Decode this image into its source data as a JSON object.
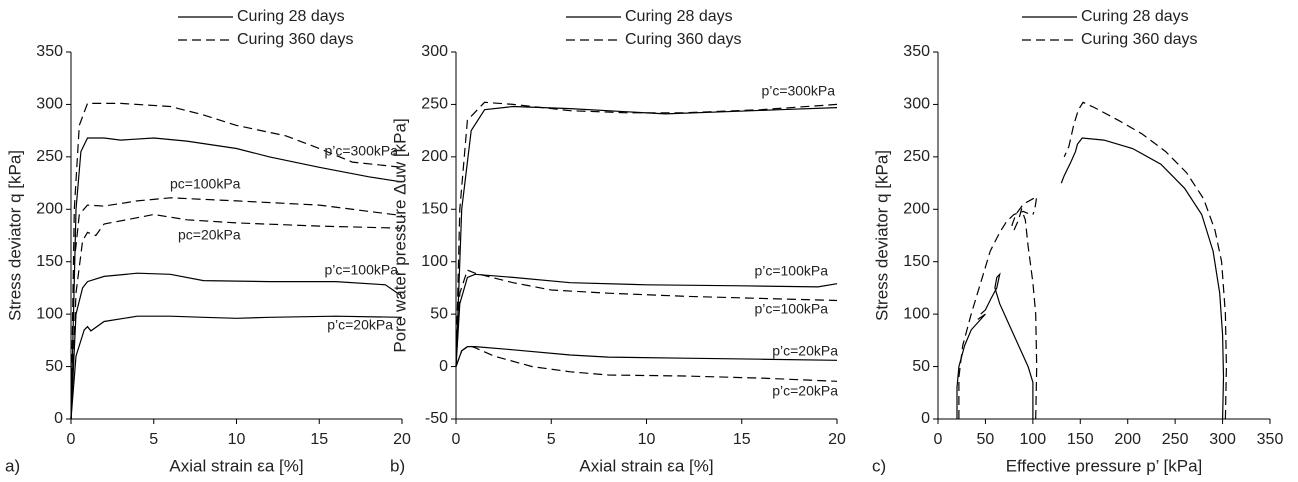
{
  "chart_data": [
    {
      "type": "line",
      "panel_label": "a)",
      "x_label": "Axial strain εa [%]",
      "y_label": "Stress deviator q [kPa]",
      "xlim": [
        0,
        20
      ],
      "xticks": [
        0,
        5,
        10,
        15,
        20
      ],
      "ylim": [
        0,
        350
      ],
      "yticks": [
        0,
        50,
        100,
        150,
        200,
        250,
        300,
        350
      ],
      "legend": [
        {
          "label": "Curing 28 days",
          "style": "solid"
        },
        {
          "label": "Curing 360 days",
          "style": "dashed"
        }
      ],
      "annotations": [
        "p’c=300kPa",
        "pc=100kPa",
        "pc=20kPa",
        "p’c=100kPa",
        "p’c=20kPa"
      ],
      "series": [
        {
          "style": "solid",
          "color": "#000000",
          "x": [
            0,
            0.3,
            0.6,
            1,
            2,
            3,
            5,
            7,
            10,
            12,
            15,
            18,
            20
          ],
          "values": [
            0,
            200,
            255,
            268,
            268,
            266,
            268,
            265,
            258,
            250,
            240,
            231,
            226
          ]
        },
        {
          "style": "dashed",
          "color": "#000000",
          "x": [
            0,
            0.2,
            0.5,
            1,
            3,
            6,
            8,
            10,
            13,
            15,
            17,
            20
          ],
          "values": [
            0,
            200,
            280,
            301,
            301,
            298,
            290,
            280,
            270,
            258,
            245,
            240
          ]
        },
        {
          "style": "dashed",
          "color": "#000000",
          "x": [
            0,
            0.2,
            0.5,
            1,
            2,
            4,
            6,
            10,
            15,
            20
          ],
          "values": [
            0,
            150,
            195,
            204,
            203,
            208,
            211,
            208,
            204,
            194
          ]
        },
        {
          "style": "dashed",
          "color": "#000000",
          "x": [
            0,
            0.3,
            0.7,
            1,
            1.5,
            2,
            4,
            5,
            7,
            10,
            15,
            20
          ],
          "values": [
            0,
            120,
            170,
            178,
            175,
            186,
            192,
            195,
            190,
            187,
            184,
            182
          ]
        },
        {
          "style": "solid",
          "color": "#000000",
          "x": [
            0,
            0.3,
            0.7,
            1,
            2,
            4,
            6,
            8,
            12,
            16,
            19,
            20
          ],
          "values": [
            0,
            100,
            125,
            131,
            136,
            139,
            138,
            132,
            131,
            131,
            128,
            117
          ]
        },
        {
          "style": "solid",
          "color": "#000000",
          "x": [
            0,
            0.3,
            0.8,
            1,
            1.2,
            2,
            4,
            6,
            8,
            10,
            12,
            16,
            20
          ],
          "values": [
            0,
            60,
            85,
            88,
            84,
            93,
            98,
            98,
            97,
            96,
            97,
            98,
            97
          ]
        }
      ]
    },
    {
      "type": "line",
      "panel_label": "b)",
      "x_label": "Axial strain εa [%]",
      "y_label": "Pore water pressure Δuw [kPa]",
      "xlim": [
        0,
        20
      ],
      "xticks": [
        0,
        5,
        10,
        15,
        20
      ],
      "ylim": [
        -50,
        300
      ],
      "yticks": [
        -50,
        0,
        50,
        100,
        150,
        200,
        250,
        300
      ],
      "legend": [
        {
          "label": "Curing 28 days",
          "style": "solid"
        },
        {
          "label": "Curing 360 days",
          "style": "dashed"
        }
      ],
      "annotations": [
        "p’c=300kPa",
        "p’c=100kPa",
        "p’c=100kPa",
        "p’c=20kPa",
        "p’c=20kPa"
      ],
      "series": [
        {
          "style": "solid",
          "color": "#000000",
          "x": [
            0,
            0.3,
            0.8,
            1.5,
            3,
            6,
            9,
            11,
            14,
            17,
            20
          ],
          "values": [
            0,
            150,
            225,
            245,
            248,
            246,
            243,
            241,
            243,
            245,
            247
          ]
        },
        {
          "style": "dashed",
          "color": "#000000",
          "x": [
            0,
            0.2,
            0.6,
            1.5,
            3,
            6,
            9,
            12,
            16,
            20
          ],
          "values": [
            0,
            150,
            235,
            252,
            250,
            244,
            242,
            242,
            245,
            250
          ]
        },
        {
          "style": "solid",
          "color": "#000000",
          "x": [
            0,
            0.2,
            0.6,
            1,
            3,
            6,
            10,
            15,
            19,
            20
          ],
          "values": [
            0,
            60,
            85,
            88,
            85,
            80,
            78,
            77,
            76,
            79
          ]
        },
        {
          "style": "dashed",
          "color": "#000000",
          "x": [
            0,
            0.2,
            0.6,
            1,
            3,
            5,
            8,
            12,
            16,
            20
          ],
          "values": [
            0,
            70,
            92,
            89,
            80,
            73,
            70,
            67,
            65,
            63
          ]
        },
        {
          "style": "solid",
          "color": "#000000",
          "x": [
            0,
            0.3,
            0.6,
            1,
            3,
            6,
            8,
            12,
            16,
            20
          ],
          "values": [
            0,
            15,
            19,
            19,
            16,
            11,
            9,
            8,
            7,
            6
          ]
        },
        {
          "style": "dashed",
          "color": "#000000",
          "x": [
            0,
            0.3,
            0.7,
            1,
            2,
            4,
            6,
            8,
            12,
            16,
            20
          ],
          "values": [
            0,
            15,
            20,
            18,
            10,
            0,
            -5,
            -8,
            -9,
            -11,
            -14
          ]
        }
      ]
    },
    {
      "type": "line",
      "panel_label": "c)",
      "x_label": "Effective pressure p’ [kPa]",
      "y_label": "Stress deviator q [kPa]",
      "xlim": [
        0,
        350
      ],
      "xticks": [
        0,
        50,
        100,
        150,
        200,
        250,
        300,
        350
      ],
      "ylim": [
        0,
        350
      ],
      "yticks": [
        0,
        50,
        100,
        150,
        200,
        250,
        300,
        350
      ],
      "legend": [
        {
          "label": "Curing 28 days",
          "style": "solid"
        },
        {
          "label": "Curing 360 days",
          "style": "dashed"
        }
      ],
      "series": [
        {
          "style": "solid",
          "color": "#000000",
          "x": [
            300,
            301,
            300,
            297,
            290,
            278,
            260,
            235,
            205,
            175,
            152,
            147,
            145,
            140,
            133,
            130
          ],
          "values": [
            0,
            40,
            80,
            120,
            160,
            195,
            220,
            243,
            258,
            266,
            268,
            262,
            255,
            245,
            232,
            225
          ]
        },
        {
          "style": "dashed",
          "color": "#000000",
          "x": [
            303,
            304,
            303,
            299,
            292,
            280,
            262,
            240,
            215,
            190,
            165,
            153,
            148,
            143,
            138,
            133
          ],
          "values": [
            0,
            50,
            100,
            150,
            180,
            210,
            235,
            255,
            272,
            285,
            297,
            302,
            295,
            280,
            260,
            250
          ]
        },
        {
          "style": "solid",
          "color": "#000000",
          "x": [
            100,
            100,
            95,
            85,
            75,
            65,
            60,
            62,
            65,
            62,
            56,
            50,
            45
          ],
          "values": [
            0,
            35,
            50,
            70,
            90,
            110,
            125,
            135,
            138,
            125,
            115,
            104,
            100
          ]
        },
        {
          "style": "dashed",
          "color": "#000000",
          "x": [
            103,
            104,
            103,
            100,
            95,
            92,
            88,
            85,
            80,
            78,
            82,
            90,
            100,
            104,
            102,
            100
          ],
          "values": [
            0,
            50,
            100,
            130,
            165,
            190,
            200,
            190,
            180,
            185,
            195,
            205,
            210,
            212,
            200,
            195
          ]
        },
        {
          "style": "solid",
          "color": "#000000",
          "x": [
            20,
            20,
            22,
            28,
            35,
            45,
            50,
            42
          ],
          "values": [
            0,
            30,
            50,
            70,
            85,
            95,
            100,
            95
          ]
        },
        {
          "style": "dashed",
          "color": "#000000",
          "x": [
            22,
            22,
            26,
            35,
            45,
            55,
            65,
            72,
            80,
            90,
            95
          ],
          "values": [
            0,
            40,
            70,
            100,
            130,
            160,
            178,
            188,
            195,
            198,
            196
          ]
        }
      ]
    }
  ]
}
